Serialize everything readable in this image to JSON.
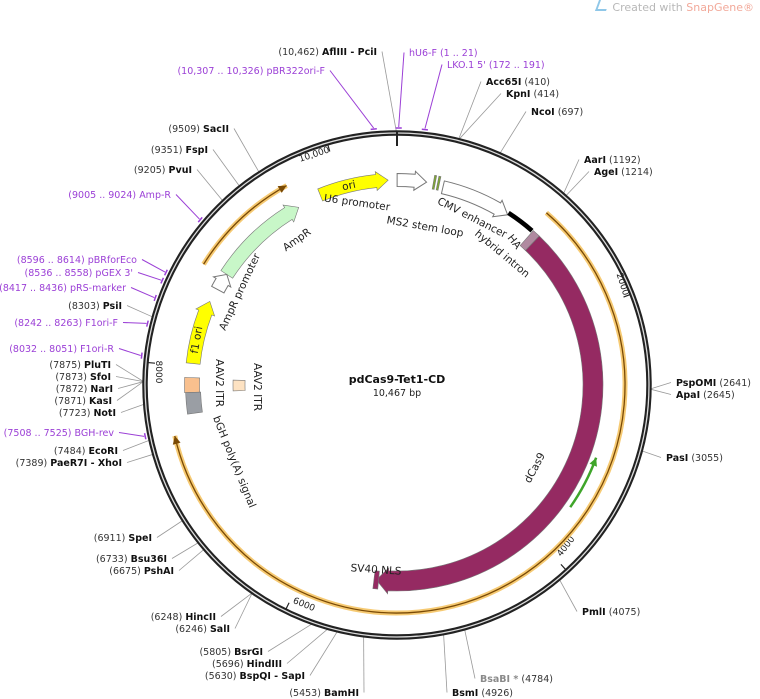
{
  "watermark": {
    "text": "Created with ",
    "brand": "SnapGene®",
    "icon": "snapgene-logo-icon"
  },
  "map": {
    "name": "pdCas9-Tet1-CD",
    "length_label": "10,467 bp",
    "total_bp": 10467,
    "ticks": [
      {
        "bp": 2000,
        "label": "2000"
      },
      {
        "bp": 4000,
        "label": "4000"
      },
      {
        "bp": 6000,
        "label": "6000"
      },
      {
        "bp": 8000,
        "label": "8000"
      },
      {
        "bp": 10000,
        "label": "10,000"
      }
    ]
  },
  "features": [
    {
      "label": "ori",
      "start": 9827,
      "end": 10395,
      "direction": "cw",
      "color": "#ffff00"
    },
    {
      "label": "U6 promoter",
      "start": 1,
      "end": 241,
      "direction": "cw",
      "color": "#ffffff"
    },
    {
      "label": "MS2 stem loop",
      "start": 296,
      "end": 312,
      "direction": "none",
      "color": "#7fa832"
    },
    {
      "label": "",
      "start": 330,
      "end": 346,
      "direction": "none",
      "color": "#7fa832"
    },
    {
      "label": "CMV enhancer",
      "start": 380,
      "end": 960,
      "direction": "cw",
      "color": "#ffffff"
    },
    {
      "label": "hybrid intron",
      "start": 960,
      "end": 1195,
      "direction": "none",
      "color": "#000000"
    },
    {
      "label": "HA",
      "start": 1205,
      "end": 1270,
      "direction": "none",
      "color": "#b08aa0"
    },
    {
      "label": "dCas9",
      "start": 1270,
      "end": 5410,
      "direction": "cw",
      "color": "#952a62"
    },
    {
      "label": "SV40 NLS",
      "start": 5390,
      "end": 5430,
      "direction": "none",
      "color": "#952a62"
    },
    {
      "label": "",
      "start": 1190,
      "end": 7475,
      "direction": "cw",
      "color": "#f5c15a"
    },
    {
      "label": "",
      "start": 8780,
      "end": 9625,
      "direction": "cw",
      "color": "#f5c15a"
    },
    {
      "label": "",
      "start": 3200,
      "end": 3640,
      "direction": "ccw",
      "color": "#3fa52a"
    },
    {
      "label": "AmpR",
      "start": 8810,
      "end": 9625,
      "direction": "cw",
      "color": "#c8f7c8"
    },
    {
      "label": "AmpR promoter",
      "start": 8665,
      "end": 8810,
      "direction": "cw",
      "color": "#ffffff"
    },
    {
      "label": "f1 ori",
      "start": 8025,
      "end": 8550,
      "direction": "cw",
      "color": "#ffff00"
    },
    {
      "label": "AAV2 ITR",
      "start": 7790,
      "end": 7910,
      "direction": "none",
      "color": "#f9c08e"
    },
    {
      "label": "bGH poly(A) signal",
      "start": 7620,
      "end": 7790,
      "direction": "none",
      "color": "#9a9ea4"
    },
    {
      "label": "AAV2 ITR",
      "start": 7790,
      "end": 7900,
      "direction": "none",
      "color": "#fde2c2"
    }
  ],
  "sites": [
    {
      "kind": "enzyme",
      "name": "AflIII  - PciI",
      "pos": "(10,462)",
      "bp": 10462
    },
    {
      "kind": "primer",
      "name": "pBR322ori-F",
      "pos": "(10,307 .. 10,326)",
      "bp": 10316
    },
    {
      "kind": "enzyme",
      "name": "SacII",
      "pos": "(9509)",
      "bp": 9509
    },
    {
      "kind": "enzyme",
      "name": "FspI",
      "pos": "(9351)",
      "bp": 9351
    },
    {
      "kind": "enzyme",
      "name": "PvuI",
      "pos": "(9205)",
      "bp": 9205
    },
    {
      "kind": "primer",
      "name": "Amp-R",
      "pos": "(9005 .. 9024)",
      "bp": 9014
    },
    {
      "kind": "primer",
      "name": "pBRforEco",
      "pos": "(8596 .. 8614)",
      "bp": 8605
    },
    {
      "kind": "primer",
      "name": "pGEX 3'",
      "pos": "(8536 .. 8558)",
      "bp": 8547
    },
    {
      "kind": "primer",
      "name": "pRS-marker",
      "pos": "(8417 .. 8436)",
      "bp": 8426
    },
    {
      "kind": "enzyme",
      "name": "PsiI",
      "pos": "(8303)",
      "bp": 8303
    },
    {
      "kind": "primer",
      "name": "F1ori-F",
      "pos": "(8242 .. 8263)",
      "bp": 8252
    },
    {
      "kind": "primer",
      "name": "F1ori-R",
      "pos": "(8032 .. 8051)",
      "bp": 8041
    },
    {
      "kind": "enzyme",
      "name": "PluTI",
      "pos": "(7875)",
      "bp": 7875
    },
    {
      "kind": "enzyme",
      "name": "SfoI",
      "pos": "(7873)",
      "bp": 7873
    },
    {
      "kind": "enzyme",
      "name": "NarI",
      "pos": "(7872)",
      "bp": 7872
    },
    {
      "kind": "enzyme",
      "name": "KasI",
      "pos": "(7871)",
      "bp": 7871
    },
    {
      "kind": "enzyme",
      "name": "NotI",
      "pos": "(7723)",
      "bp": 7723
    },
    {
      "kind": "primer",
      "name": "BGH-rev",
      "pos": "(7508 .. 7525)",
      "bp": 7516
    },
    {
      "kind": "enzyme",
      "name": "EcoRI",
      "pos": "(7484)",
      "bp": 7484
    },
    {
      "kind": "enzyme",
      "name": "PaeR7I  - XhoI",
      "pos": "(7389)",
      "bp": 7389
    },
    {
      "kind": "enzyme",
      "name": "SpeI",
      "pos": "(6911)",
      "bp": 6911
    },
    {
      "kind": "enzyme",
      "name": "Bsu36I",
      "pos": "(6733)",
      "bp": 6733
    },
    {
      "kind": "enzyme",
      "name": "PshAI",
      "pos": "(6675)",
      "bp": 6675
    },
    {
      "kind": "enzyme",
      "name": "HincII",
      "pos": "(6248)",
      "bp": 6248
    },
    {
      "kind": "enzyme",
      "name": "SalI",
      "pos": "(6246)",
      "bp": 6246
    },
    {
      "kind": "enzyme",
      "name": "BsrGI",
      "pos": "(5805)",
      "bp": 5805
    },
    {
      "kind": "enzyme",
      "name": "HindIII",
      "pos": "(5696)",
      "bp": 5696
    },
    {
      "kind": "enzyme",
      "name": "BspQI  - SapI",
      "pos": "(5630)",
      "bp": 5630
    },
    {
      "kind": "enzyme",
      "name": "BamHI",
      "pos": "(5453)",
      "bp": 5453
    },
    {
      "kind": "primer",
      "name": "hU6-F",
      "pos": "(1 .. 21)",
      "bp": 11
    },
    {
      "kind": "primer",
      "name": "LKO.1 5'",
      "pos": "(172 .. 191)",
      "bp": 181
    },
    {
      "kind": "enzyme",
      "name": "Acc65I",
      "pos": "(410)",
      "bp": 410
    },
    {
      "kind": "enzyme",
      "name": "KpnI",
      "pos": "(414)",
      "bp": 414
    },
    {
      "kind": "enzyme",
      "name": "NcoI",
      "pos": "(697)",
      "bp": 697
    },
    {
      "kind": "enzyme",
      "name": "AarI",
      "pos": "(1192)",
      "bp": 1192
    },
    {
      "kind": "enzyme",
      "name": "AgeI",
      "pos": "(1214)",
      "bp": 1214
    },
    {
      "kind": "enzyme",
      "name": "PspOMI",
      "pos": "(2641)",
      "bp": 2641
    },
    {
      "kind": "enzyme",
      "name": "ApaI",
      "pos": "(2645)",
      "bp": 2645
    },
    {
      "kind": "enzyme",
      "name": "PasI",
      "pos": "(3055)",
      "bp": 3055
    },
    {
      "kind": "enzyme",
      "name": "PmlI",
      "pos": "(4075)",
      "bp": 4075
    },
    {
      "kind": "enzyme-dim",
      "name": "BsaBI *",
      "pos": "(4784)",
      "bp": 4784
    },
    {
      "kind": "enzyme",
      "name": "BsmI",
      "pos": "(4926)",
      "bp": 4926
    }
  ],
  "colors": {
    "primer": "#9b3fd6",
    "backbone": "#222222",
    "enzyme_dim": "#8a8a8a"
  }
}
